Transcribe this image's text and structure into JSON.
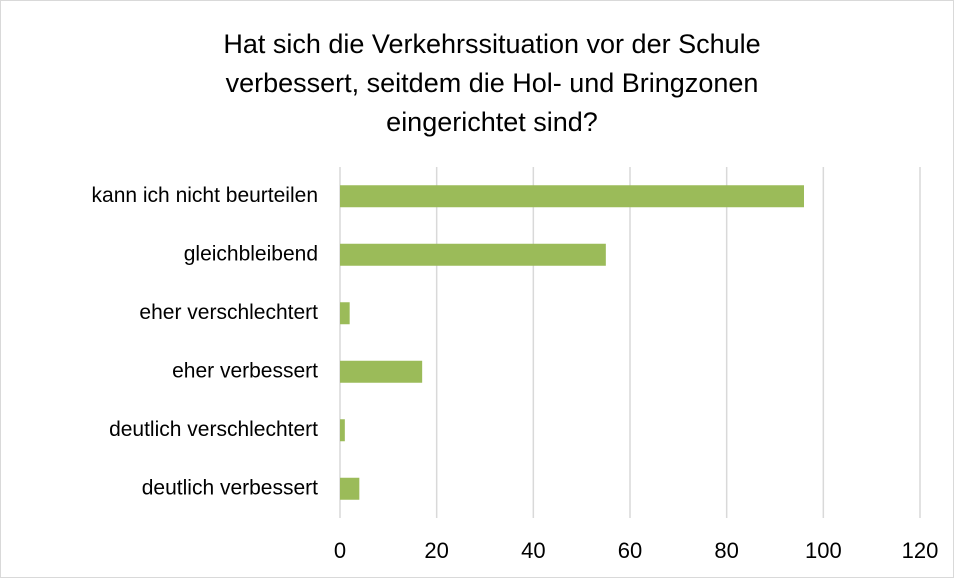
{
  "chart_data": {
    "type": "bar",
    "orientation": "horizontal",
    "title": [
      "Hat sich die Verkehrssituation vor der Schule",
      "verbessert, seitdem die Hol- und Bringzonen",
      "eingerichtet sind?"
    ],
    "categories": [
      "kann ich nicht beurteilen",
      "gleichbleibend",
      "eher verschlechtert",
      "eher verbessert",
      "deutlich verschlechtert",
      "deutlich verbessert"
    ],
    "values": [
      96,
      55,
      2,
      17,
      1,
      4
    ],
    "color": "#9bbb59",
    "xlim": [
      0,
      120
    ],
    "xticks": [
      0,
      20,
      40,
      60,
      80,
      100,
      120
    ],
    "grid": true
  }
}
